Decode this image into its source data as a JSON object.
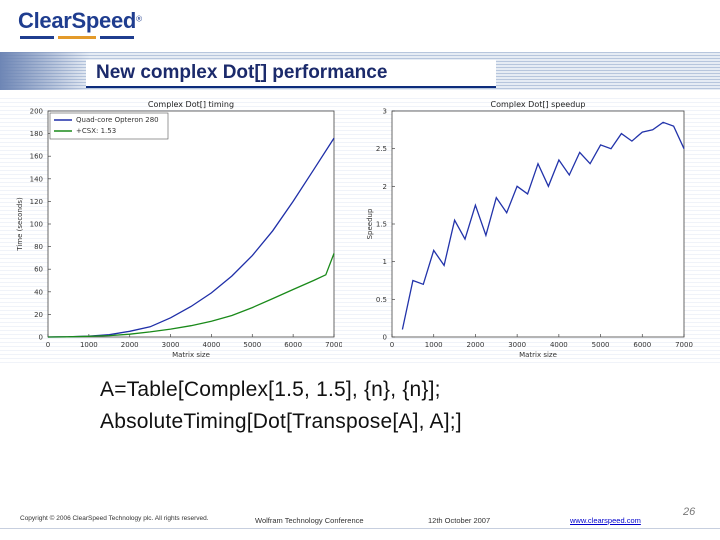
{
  "header": {
    "logo_text": "ClearSpeed",
    "logo_mark": "®",
    "logo_bar_colors": [
      "#1f3d8f",
      "#e39a2a",
      "#1f3d8f"
    ],
    "slide_title": "New complex Dot[] performance"
  },
  "code": {
    "line1": "A=Table[Complex[1.5, 1.5], {n}, {n}];",
    "line2": "AbsoluteTiming[Dot[Transpose[A], A];]"
  },
  "footer": {
    "copyright": "Copyright © 2006 ClearSpeed Technology plc. All rights reserved.",
    "conference": "Wolfram Technology Conference",
    "date": "12th October 2007",
    "url": "www.clearspeed.com",
    "page_number": "26"
  },
  "colors": {
    "accent_navy": "#1b2a6b",
    "series_blue": "#1f2fa8",
    "series_green": "#1a8a1a",
    "speedup_blue": "#2233aa"
  },
  "chart_data": [
    {
      "type": "line",
      "title": "Complex Dot[] timing",
      "xlabel": "Matrix size",
      "ylabel": "Time (seconds)",
      "xlim": [
        0,
        7000
      ],
      "ylim": [
        0,
        200
      ],
      "xticks": [
        "0",
        "1000",
        "2000",
        "3000",
        "4000",
        "5000",
        "6000",
        "7000"
      ],
      "yticks": [
        "0",
        "20",
        "40",
        "60",
        "80",
        "100",
        "120",
        "140",
        "160",
        "180",
        "200"
      ],
      "legend_position": "top-left",
      "series": [
        {
          "name": "Quad-core Opteron 280",
          "color": "#1f2fa8",
          "x": [
            0,
            500,
            1000,
            1500,
            2000,
            2500,
            3000,
            3500,
            4000,
            4500,
            5000,
            5500,
            6000,
            6500,
            7000
          ],
          "y": [
            0,
            0.2,
            0.8,
            2,
            5,
            9,
            17,
            27,
            39,
            54,
            72,
            94,
            120,
            148,
            176
          ]
        },
        {
          "name": "+CSX: 1.53",
          "color": "#1a8a1a",
          "x": [
            0,
            500,
            1000,
            1500,
            2000,
            2500,
            3000,
            3500,
            4000,
            4500,
            5000,
            5500,
            6000,
            6500,
            6800,
            7000
          ],
          "y": [
            0,
            0.2,
            0.6,
            1.2,
            2.5,
            4.5,
            7,
            10,
            14,
            19,
            26,
            34,
            42,
            50,
            55,
            74
          ]
        }
      ]
    },
    {
      "type": "line",
      "title": "Complex Dot[] speedup",
      "xlabel": "Matrix size",
      "ylabel": "Speedup",
      "xlim": [
        0,
        7000
      ],
      "ylim": [
        0,
        3
      ],
      "xticks": [
        "0",
        "1000",
        "2000",
        "3000",
        "4000",
        "5000",
        "6000",
        "7000"
      ],
      "yticks": [
        "0",
        "0.5",
        "1",
        "1.5",
        "2",
        "2.5",
        "3"
      ],
      "series": [
        {
          "name": "",
          "color": "#2233aa",
          "x": [
            250,
            500,
            750,
            1000,
            1250,
            1500,
            1750,
            2000,
            2250,
            2500,
            2750,
            3000,
            3250,
            3500,
            3750,
            4000,
            4250,
            4500,
            4750,
            5000,
            5250,
            5500,
            5750,
            6000,
            6250,
            6500,
            6750,
            7000
          ],
          "y": [
            0.1,
            0.75,
            0.7,
            1.15,
            0.95,
            1.55,
            1.3,
            1.75,
            1.35,
            1.85,
            1.65,
            2.0,
            1.9,
            2.3,
            2.0,
            2.35,
            2.15,
            2.45,
            2.3,
            2.55,
            2.5,
            2.7,
            2.6,
            2.72,
            2.75,
            2.85,
            2.8,
            2.5
          ]
        }
      ]
    }
  ]
}
